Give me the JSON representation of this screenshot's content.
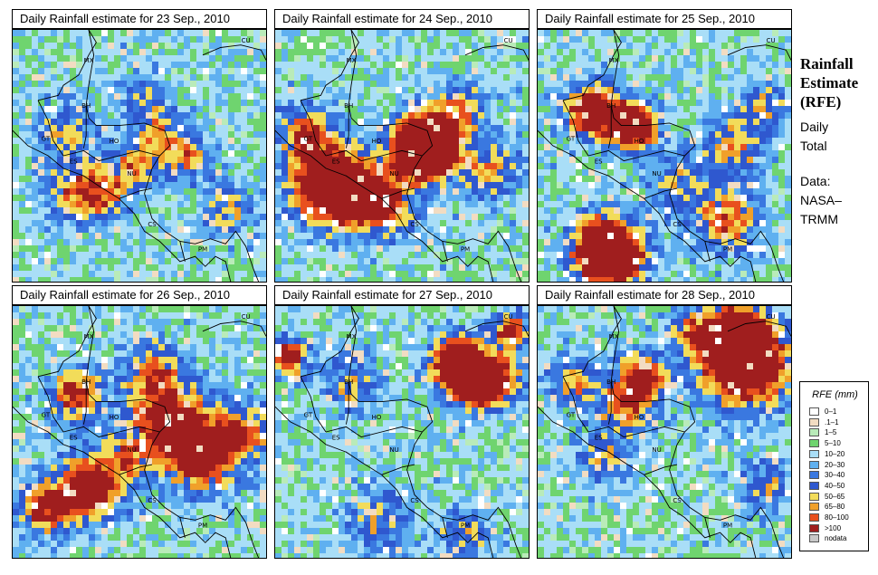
{
  "panels": [
    {
      "title": "Daily Rainfall estimate for  23 Sep., 2010"
    },
    {
      "title": "Daily Rainfall estimate for  24 Sep., 2010"
    },
    {
      "title": "Daily Rainfall estimate for  25 Sep., 2010"
    },
    {
      "title": "Daily Rainfall estimate for  26 Sep., 2010"
    },
    {
      "title": "Daily Rainfall estimate for  27 Sep., 2010"
    },
    {
      "title": "Daily Rainfall estimate for  28 Sep., 2010"
    }
  ],
  "country_labels": [
    "MX",
    "CU",
    "BH",
    "GT",
    "HO",
    "ES",
    "NU",
    "CS",
    "PM"
  ],
  "sidebar": {
    "title_line1": "Rainfall",
    "title_line2": "Estimate",
    "title_line3": "(RFE)",
    "subtitle_line1": "Daily",
    "subtitle_line2": "Total",
    "source_line1": "Data:",
    "source_line2": "NASA–",
    "source_line3": "TRMM"
  },
  "legend": {
    "title": "RFE (mm)",
    "items": [
      {
        "label": "0–1",
        "color": "#ffffff"
      },
      {
        "label": ".1–1",
        "color": "#f2dcc2"
      },
      {
        "label": "1–5",
        "color": "#b9ebb9"
      },
      {
        "label": "5–10",
        "color": "#6fd46f"
      },
      {
        "label": "10–20",
        "color": "#a9def7"
      },
      {
        "label": "20–30",
        "color": "#5fb0f0"
      },
      {
        "label": "30–40",
        "color": "#3a78e0"
      },
      {
        "label": "40–50",
        "color": "#2f58cf"
      },
      {
        "label": "50–65",
        "color": "#f2dc5a"
      },
      {
        "label": "65–80",
        "color": "#f0a02a"
      },
      {
        "label": "80–100",
        "color": "#e8501e"
      },
      {
        "label": ">100",
        "color": "#a01e1e"
      },
      {
        "label": "nodata",
        "color": "#c8c8c8"
      }
    ]
  },
  "rain_centers": [
    [
      [
        0.58,
        0.42,
        5,
        18
      ],
      [
        0.48,
        0.55,
        4,
        14
      ],
      [
        0.25,
        0.63,
        5,
        20
      ],
      [
        0.35,
        0.65,
        4,
        16
      ],
      [
        0.7,
        0.5,
        4,
        14
      ],
      [
        0.2,
        0.4,
        4,
        16
      ],
      [
        0.85,
        0.7,
        4,
        16
      ],
      [
        0.5,
        0.25,
        3,
        14
      ]
    ],
    [
      [
        0.6,
        0.45,
        12,
        20
      ],
      [
        0.58,
        0.47,
        11,
        14
      ],
      [
        0.2,
        0.6,
        9,
        24
      ],
      [
        0.32,
        0.65,
        8,
        20
      ],
      [
        0.45,
        0.7,
        5,
        18
      ],
      [
        0.85,
        0.55,
        5,
        18
      ],
      [
        0.75,
        0.3,
        4,
        16
      ],
      [
        0.12,
        0.4,
        6,
        16
      ]
    ],
    [
      [
        0.38,
        0.38,
        11,
        14
      ],
      [
        0.22,
        0.32,
        10,
        16
      ],
      [
        0.3,
        0.9,
        9,
        20
      ],
      [
        0.25,
        0.85,
        8,
        18
      ],
      [
        0.75,
        0.75,
        6,
        20
      ],
      [
        0.78,
        0.45,
        5,
        18
      ],
      [
        0.55,
        0.6,
        4,
        18
      ],
      [
        0.9,
        0.3,
        4,
        14
      ]
    ],
    [
      [
        0.3,
        0.72,
        9,
        20
      ],
      [
        0.62,
        0.45,
        8,
        24
      ],
      [
        0.75,
        0.6,
        8,
        20
      ],
      [
        0.25,
        0.35,
        7,
        16
      ],
      [
        0.55,
        0.25,
        5,
        18
      ],
      [
        0.9,
        0.5,
        6,
        18
      ],
      [
        0.12,
        0.8,
        7,
        16
      ],
      [
        0.45,
        0.6,
        4,
        16
      ]
    ],
    [
      [
        0.72,
        0.23,
        11,
        16
      ],
      [
        0.8,
        0.3,
        8,
        16
      ],
      [
        0.05,
        0.2,
        8,
        12
      ],
      [
        0.93,
        0.1,
        7,
        12
      ],
      [
        0.88,
        0.3,
        5,
        16
      ],
      [
        0.3,
        0.3,
        4,
        18
      ],
      [
        0.4,
        0.85,
        4,
        20
      ],
      [
        0.75,
        0.9,
        4,
        16
      ]
    ],
    [
      [
        0.82,
        0.22,
        12,
        26
      ],
      [
        0.78,
        0.12,
        10,
        16
      ],
      [
        0.42,
        0.28,
        8,
        14
      ],
      [
        0.35,
        0.4,
        6,
        16
      ],
      [
        0.15,
        0.3,
        5,
        16
      ],
      [
        0.25,
        0.6,
        4,
        16
      ],
      [
        0.6,
        0.1,
        5,
        14
      ],
      [
        0.9,
        0.7,
        4,
        16
      ]
    ]
  ]
}
